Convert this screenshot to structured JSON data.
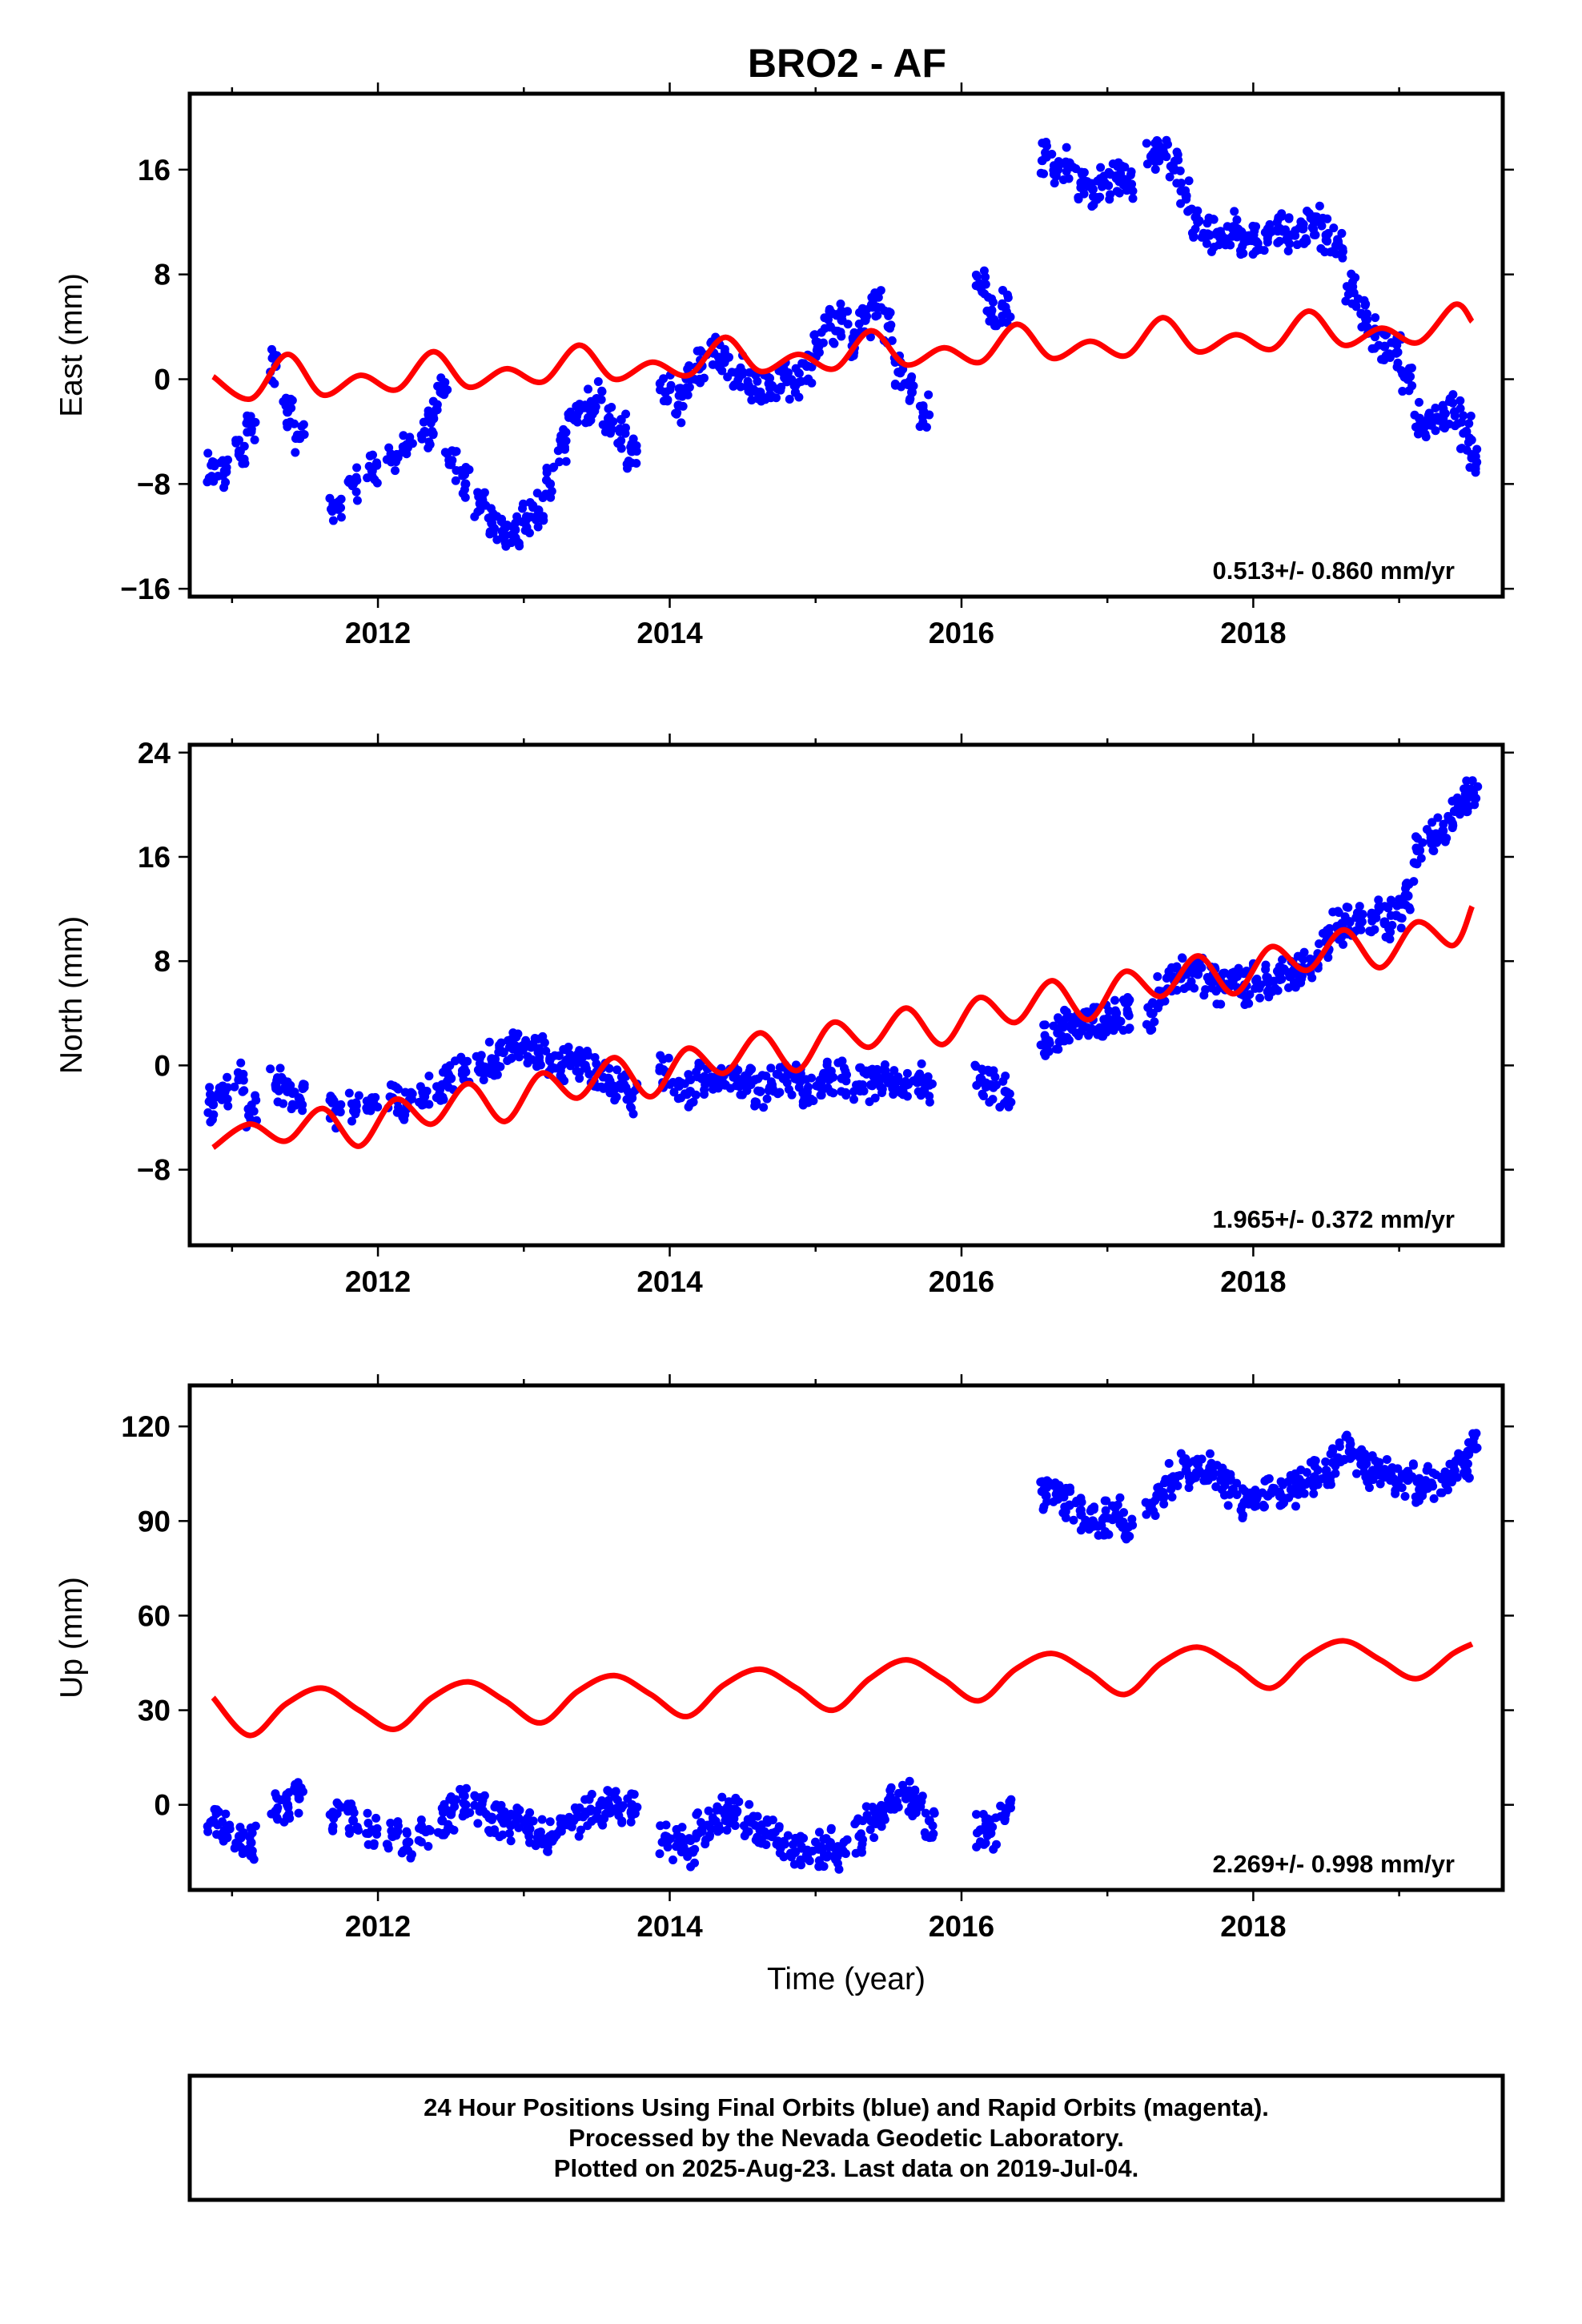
{
  "title": "BRO2 - AF",
  "xlabel": "Time (year)",
  "caption": [
    "24 Hour Positions Using Final Orbits (blue) and Rapid Orbits (magenta).",
    "Processed by the Nevada Geodetic Laboratory.",
    "Plotted on 2025-Aug-23. Last data on 2019-Jul-04."
  ],
  "colors": {
    "final_orbits": "#0000ff",
    "model": "#ff0000",
    "frame": "#000000"
  },
  "chart_data": [
    {
      "type": "scatter",
      "ylabel": "East (mm)",
      "rate_text": "0.513+/- 0.860 mm/yr",
      "xlim": [
        2010.71,
        2019.71
      ],
      "ylim": [
        -16.6,
        21.8
      ],
      "xticks": [
        2012,
        2014,
        2016,
        2018
      ],
      "yticks": [
        -16,
        -8,
        0,
        8,
        16
      ],
      "ytick_labels": [
        "−16",
        "−8",
        "0",
        "8",
        "16"
      ],
      "series": [
        {
          "role": "observations",
          "x": [
            2010.87,
            2010.95,
            2011.05,
            2011.13,
            2011.3,
            2011.38,
            2011.46,
            2011.71,
            2011.83,
            2011.96,
            2012.1,
            2012.2,
            2012.32,
            2012.38,
            2012.44,
            2012.5,
            2012.6,
            2012.7,
            2012.78,
            2012.86,
            2012.94,
            2013.02,
            2013.1,
            2013.18,
            2013.26,
            2013.34,
            2013.42,
            2013.5,
            2013.58,
            2013.66,
            2013.74,
            2013.97,
            2014.06,
            2014.14,
            2014.22,
            2014.3,
            2014.38,
            2014.46,
            2014.54,
            2014.62,
            2014.7,
            2014.78,
            2014.86,
            2014.94,
            2015.02,
            2015.1,
            2015.18,
            2015.26,
            2015.34,
            2015.42,
            2015.5,
            2015.58,
            2015.66,
            2015.74,
            2016.13,
            2016.2,
            2016.3,
            2016.58,
            2016.66,
            2016.74,
            2016.82,
            2016.9,
            2016.98,
            2017.06,
            2017.14,
            2017.3,
            2017.38,
            2017.46,
            2017.54,
            2017.62,
            2017.7,
            2017.78,
            2017.86,
            2017.94,
            2018.02,
            2018.1,
            2018.18,
            2018.26,
            2018.34,
            2018.42,
            2018.5,
            2018.58,
            2018.66,
            2018.74,
            2018.82,
            2018.9,
            2018.98,
            2019.06,
            2019.14,
            2019.22,
            2019.3,
            2019.38,
            2019.46,
            2019.5
          ],
          "y": [
            -6.5,
            -7.0,
            -5.5,
            -4.0,
            1.0,
            -2.5,
            -4.5,
            -9.5,
            -8.0,
            -7.0,
            -6.0,
            -5.0,
            -4.0,
            -3.0,
            -1.0,
            -6.5,
            -8.0,
            -9.5,
            -11.0,
            -12.0,
            -11.5,
            -10.5,
            -10.0,
            -8.0,
            -5.0,
            -3.0,
            -2.0,
            -1.5,
            -3.0,
            -4.0,
            -5.5,
            -1.0,
            -2.0,
            0.0,
            1.0,
            2.0,
            1.5,
            0.5,
            -0.5,
            -1.0,
            -0.5,
            0.5,
            -0.5,
            1.0,
            2.5,
            4.0,
            4.5,
            3.0,
            4.5,
            5.5,
            4.0,
            0.5,
            -1.0,
            -2.5,
            7.0,
            5.0,
            5.5,
            17.0,
            16.0,
            16.5,
            15.0,
            14.5,
            15.0,
            15.5,
            15.0,
            17.0,
            17.5,
            16.0,
            14.0,
            12.0,
            11.0,
            11.0,
            11.5,
            10.5,
            10.5,
            11.0,
            11.5,
            11.0,
            11.5,
            12.0,
            11.0,
            10.5,
            7.0,
            5.0,
            3.5,
            2.5,
            2.0,
            0.0,
            -3.0,
            -3.5,
            -3.0,
            -2.5,
            -4.0,
            -6.0
          ]
        },
        {
          "role": "model",
          "x": [
            2010.87,
            2011.13,
            2011.38,
            2011.62,
            2011.88,
            2012.13,
            2012.38,
            2012.62,
            2012.88,
            2013.13,
            2013.38,
            2013.62,
            2013.88,
            2014.13,
            2014.38,
            2014.62,
            2014.88,
            2015.13,
            2015.38,
            2015.62,
            2015.88,
            2016.13,
            2016.38,
            2016.62,
            2016.88,
            2017.13,
            2017.38,
            2017.62,
            2017.88,
            2018.13,
            2018.38,
            2018.62,
            2018.88,
            2019.13,
            2019.38,
            2019.5
          ],
          "y": [
            0.2,
            -1.5,
            1.9,
            -1.2,
            0.3,
            -0.8,
            2.1,
            -0.6,
            0.8,
            -0.2,
            2.6,
            0.0,
            1.3,
            0.3,
            3.2,
            0.6,
            1.9,
            0.8,
            3.7,
            1.1,
            2.4,
            1.3,
            4.2,
            1.6,
            2.9,
            1.8,
            4.7,
            2.1,
            3.4,
            2.3,
            5.2,
            2.6,
            3.9,
            2.8,
            5.7,
            4.4
          ]
        }
      ]
    },
    {
      "type": "scatter",
      "ylabel": "North (mm)",
      "rate_text": "1.965+/- 0.372 mm/yr",
      "xlim": [
        2010.71,
        2019.71
      ],
      "ylim": [
        -13.8,
        24.6
      ],
      "xticks": [
        2012,
        2014,
        2016,
        2018
      ],
      "yticks": [
        -8,
        0,
        8,
        16,
        24
      ],
      "ytick_labels": [
        "−8",
        "0",
        "8",
        "16",
        "24"
      ],
      "series": [
        {
          "role": "observations",
          "x": [
            2010.87,
            2010.95,
            2011.05,
            2011.13,
            2011.3,
            2011.38,
            2011.46,
            2011.71,
            2011.83,
            2011.96,
            2012.1,
            2012.2,
            2012.32,
            2012.44,
            2012.5,
            2012.6,
            2012.7,
            2012.78,
            2012.86,
            2012.94,
            2013.02,
            2013.1,
            2013.18,
            2013.26,
            2013.34,
            2013.42,
            2013.5,
            2013.58,
            2013.66,
            2013.74,
            2013.97,
            2014.06,
            2014.14,
            2014.22,
            2014.3,
            2014.38,
            2014.46,
            2014.54,
            2014.62,
            2014.7,
            2014.78,
            2014.86,
            2014.94,
            2015.02,
            2015.1,
            2015.18,
            2015.3,
            2015.38,
            2015.46,
            2015.54,
            2015.62,
            2015.7,
            2015.78,
            2016.13,
            2016.2,
            2016.3,
            2016.58,
            2016.66,
            2016.74,
            2016.82,
            2016.9,
            2016.98,
            2017.06,
            2017.14,
            2017.3,
            2017.38,
            2017.46,
            2017.54,
            2017.62,
            2017.7,
            2017.78,
            2017.86,
            2017.94,
            2018.02,
            2018.1,
            2018.18,
            2018.26,
            2018.34,
            2018.42,
            2018.5,
            2018.58,
            2018.66,
            2018.74,
            2018.82,
            2018.9,
            2018.98,
            2019.06,
            2019.14,
            2019.22,
            2019.3,
            2019.38,
            2019.46,
            2019.5
          ],
          "y": [
            -3.0,
            -2.0,
            -1.0,
            -3.5,
            -1.5,
            -2.0,
            -2.5,
            -3.5,
            -3.0,
            -2.5,
            -2.5,
            -3.0,
            -2.0,
            -1.5,
            -1.0,
            -0.5,
            -0.5,
            0.5,
            1.0,
            1.5,
            1.5,
            1.0,
            0.5,
            0.0,
            0.5,
            0.0,
            -0.5,
            -1.0,
            -1.5,
            -2.5,
            -0.5,
            -1.5,
            -2.0,
            -1.0,
            -1.5,
            -1.5,
            -1.0,
            -1.5,
            -2.0,
            -1.5,
            -1.0,
            -1.0,
            -2.0,
            -1.5,
            -1.0,
            -1.0,
            -1.5,
            -1.5,
            -1.0,
            -1.5,
            -1.5,
            -1.0,
            -1.5,
            -1.0,
            -1.5,
            -2.0,
            2.0,
            2.5,
            3.0,
            3.5,
            3.5,
            3.5,
            4.0,
            4.0,
            4.0,
            5.5,
            6.5,
            7.0,
            7.0,
            6.5,
            6.0,
            6.5,
            6.0,
            6.5,
            6.5,
            7.0,
            7.0,
            7.5,
            8.0,
            9.5,
            10.5,
            11.0,
            11.0,
            11.5,
            11.0,
            11.5,
            13.0,
            16.5,
            17.5,
            18.0,
            19.5,
            20.5,
            21.0
          ]
        },
        {
          "role": "model",
          "x": [
            2010.87,
            2011.12,
            2011.37,
            2011.62,
            2011.87,
            2012.12,
            2012.37,
            2012.62,
            2012.87,
            2013.12,
            2013.37,
            2013.62,
            2013.87,
            2014.12,
            2014.37,
            2014.62,
            2014.87,
            2015.12,
            2015.37,
            2015.62,
            2015.87,
            2016.12,
            2016.37,
            2016.62,
            2016.87,
            2017.12,
            2017.37,
            2017.62,
            2017.87,
            2018.12,
            2018.37,
            2018.62,
            2018.87,
            2019.12,
            2019.37,
            2019.5
          ],
          "y": [
            -6.3,
            -4.5,
            -5.8,
            -3.3,
            -6.2,
            -2.6,
            -4.5,
            -1.4,
            -4.3,
            -0.6,
            -2.5,
            0.6,
            -2.4,
            1.3,
            -0.6,
            2.5,
            -0.4,
            3.3,
            1.4,
            4.4,
            1.6,
            5.2,
            3.3,
            6.5,
            3.5,
            7.2,
            5.3,
            8.4,
            5.5,
            9.1,
            7.3,
            10.4,
            7.5,
            11.0,
            9.2,
            12.2
          ]
        }
      ]
    },
    {
      "type": "scatter",
      "ylabel": "Up (mm)",
      "rate_text": "2.269+/- 0.998 mm/yr",
      "xlim": [
        2010.71,
        2019.71
      ],
      "ylim": [
        -27.0,
        133.0
      ],
      "xticks": [
        2012,
        2014,
        2016,
        2018
      ],
      "yticks": [
        0,
        30,
        60,
        90,
        120
      ],
      "ytick_labels": [
        "0",
        "30",
        "60",
        "90",
        "120"
      ],
      "series": [
        {
          "role": "observations",
          "x": [
            2010.87,
            2010.95,
            2011.05,
            2011.13,
            2011.3,
            2011.38,
            2011.46,
            2011.71,
            2011.83,
            2011.96,
            2012.1,
            2012.2,
            2012.32,
            2012.44,
            2012.5,
            2012.6,
            2012.7,
            2012.78,
            2012.86,
            2012.94,
            2013.02,
            2013.1,
            2013.18,
            2013.26,
            2013.34,
            2013.42,
            2013.5,
            2013.58,
            2013.66,
            2013.74,
            2013.97,
            2014.06,
            2014.14,
            2014.22,
            2014.3,
            2014.38,
            2014.46,
            2014.54,
            2014.62,
            2014.7,
            2014.78,
            2014.86,
            2014.94,
            2015.02,
            2015.1,
            2015.18,
            2015.3,
            2015.38,
            2015.46,
            2015.54,
            2015.62,
            2015.7,
            2015.78,
            2016.13,
            2016.2,
            2016.3,
            2016.58,
            2016.66,
            2016.74,
            2016.82,
            2016.9,
            2016.98,
            2017.06,
            2017.14,
            2017.3,
            2017.38,
            2017.46,
            2017.54,
            2017.62,
            2017.7,
            2017.78,
            2017.86,
            2017.94,
            2018.02,
            2018.1,
            2018.18,
            2018.26,
            2018.34,
            2018.42,
            2018.5,
            2018.58,
            2018.66,
            2018.74,
            2018.82,
            2018.9,
            2018.98,
            2019.06,
            2019.14,
            2019.22,
            2019.3,
            2019.38,
            2019.46,
            2019.5
          ],
          "y": [
            -5,
            -8,
            -10,
            -12,
            -2,
            0,
            2,
            -3,
            -5,
            -8,
            -10,
            -12,
            -8,
            -5,
            -3,
            0,
            -2,
            -4,
            -5,
            -6,
            -8,
            -9,
            -10,
            -7,
            -5,
            -3,
            -2,
            0,
            -1,
            0,
            -10,
            -12,
            -15,
            -8,
            -5,
            -3,
            -2,
            -5,
            -8,
            -10,
            -12,
            -15,
            -16,
            -14,
            -12,
            -15,
            -10,
            -5,
            -2,
            0,
            2,
            0,
            -5,
            -8,
            -9,
            -3,
            98,
            97,
            95,
            92,
            90,
            91,
            92,
            88,
            95,
            98,
            103,
            106,
            108,
            106,
            103,
            100,
            96,
            97,
            98,
            99,
            100,
            102,
            104,
            106,
            110,
            112,
            108,
            106,
            104,
            102,
            103,
            100,
            102,
            104,
            106,
            108,
            114
          ]
        },
        {
          "role": "model",
          "x": [
            2010.87,
            2011.12,
            2011.37,
            2011.62,
            2011.87,
            2012.12,
            2012.37,
            2012.62,
            2012.87,
            2013.12,
            2013.37,
            2013.62,
            2013.87,
            2014.12,
            2014.37,
            2014.62,
            2014.87,
            2015.12,
            2015.37,
            2015.62,
            2015.87,
            2016.12,
            2016.37,
            2016.62,
            2016.87,
            2017.12,
            2017.37,
            2017.62,
            2017.87,
            2018.12,
            2018.37,
            2018.62,
            2018.87,
            2019.12,
            2019.37,
            2019.5
          ],
          "y": [
            34,
            22,
            32,
            37,
            30,
            24,
            34,
            39,
            33,
            26,
            36,
            41,
            35,
            28,
            38,
            43,
            37,
            30,
            40,
            46,
            40,
            33,
            43,
            48,
            42,
            35,
            45,
            50,
            44,
            37,
            47,
            52,
            46,
            40,
            48,
            51
          ]
        }
      ]
    }
  ]
}
